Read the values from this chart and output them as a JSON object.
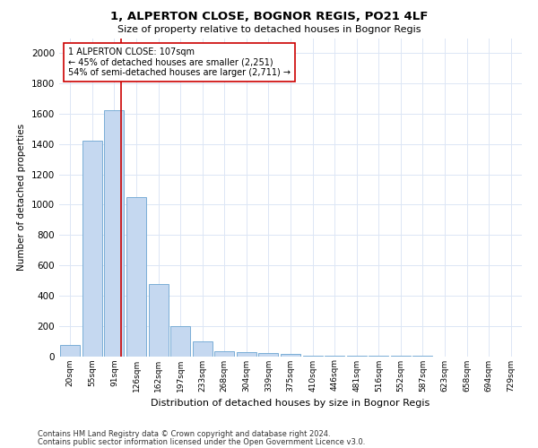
{
  "title": "1, ALPERTON CLOSE, BOGNOR REGIS, PO21 4LF",
  "subtitle": "Size of property relative to detached houses in Bognor Regis",
  "xlabel": "Distribution of detached houses by size in Bognor Regis",
  "ylabel": "Number of detached properties",
  "bin_labels": [
    "20sqm",
    "55sqm",
    "91sqm",
    "126sqm",
    "162sqm",
    "197sqm",
    "233sqm",
    "268sqm",
    "304sqm",
    "339sqm",
    "375sqm",
    "410sqm",
    "446sqm",
    "481sqm",
    "516sqm",
    "552sqm",
    "587sqm",
    "623sqm",
    "658sqm",
    "694sqm",
    "729sqm"
  ],
  "bar_values": [
    75,
    1425,
    1625,
    1050,
    475,
    200,
    100,
    35,
    25,
    20,
    15,
    5,
    3,
    2,
    1,
    1,
    1,
    0,
    0,
    0,
    0
  ],
  "bar_color": "#c5d8f0",
  "bar_edgecolor": "#7aaed6",
  "red_line_color": "#cc0000",
  "red_line_xoffset": 0.3,
  "annotation_line1": "1 ALPERTON CLOSE: 107sqm",
  "annotation_line2": "← 45% of detached houses are smaller (2,251)",
  "annotation_line3": "54% of semi-detached houses are larger (2,711) →",
  "annotation_box_facecolor": "#ffffff",
  "annotation_box_edgecolor": "#cc0000",
  "ylim": [
    0,
    2100
  ],
  "yticks": [
    0,
    200,
    400,
    600,
    800,
    1000,
    1200,
    1400,
    1600,
    1800,
    2000
  ],
  "footer1": "Contains HM Land Registry data © Crown copyright and database right 2024.",
  "footer2": "Contains public sector information licensed under the Open Government Licence v3.0.",
  "bg_color": "#ffffff",
  "grid_color": "#dce6f5",
  "title_fontsize": 9.5,
  "subtitle_fontsize": 8,
  "ylabel_fontsize": 7.5,
  "xlabel_fontsize": 8,
  "ytick_fontsize": 7.5,
  "xtick_fontsize": 6.5,
  "annot_fontsize": 7,
  "footer_fontsize": 6
}
